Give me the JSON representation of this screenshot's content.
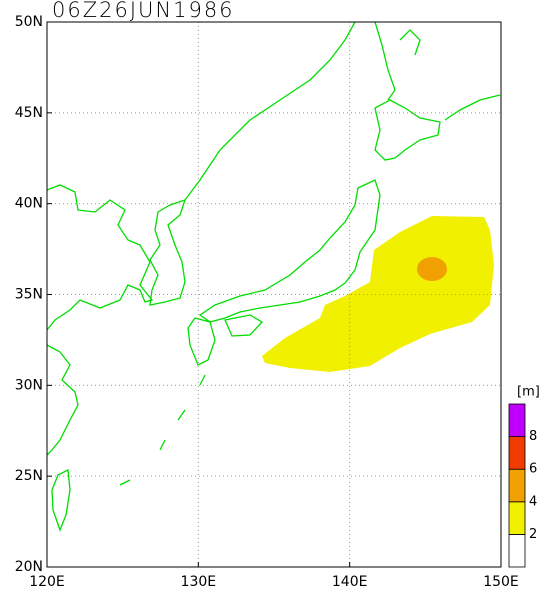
{
  "title": "06Z26JUN1986",
  "map": {
    "xlim": [
      120,
      150
    ],
    "ylim": [
      20,
      50
    ],
    "xticks": [
      {
        "value": 120,
        "label": "120E"
      },
      {
        "value": 130,
        "label": "130E"
      },
      {
        "value": 140,
        "label": "140E"
      },
      {
        "value": 150,
        "label": "150E"
      }
    ],
    "yticks": [
      {
        "value": 20,
        "label": "20N"
      },
      {
        "value": 25,
        "label": "25N"
      },
      {
        "value": 30,
        "label": "30N"
      },
      {
        "value": 35,
        "label": "35N"
      },
      {
        "value": 40,
        "label": "40N"
      },
      {
        "value": 45,
        "label": "45N"
      },
      {
        "value": 50,
        "label": "50N"
      }
    ],
    "grid": true
  },
  "colorbar": {
    "unit": "[m]",
    "levels": [
      2,
      4,
      6,
      8
    ],
    "colors": [
      "#ffffff",
      "#f0f000",
      "#f0a000",
      "#f03c00",
      "#c000ff"
    ]
  }
}
